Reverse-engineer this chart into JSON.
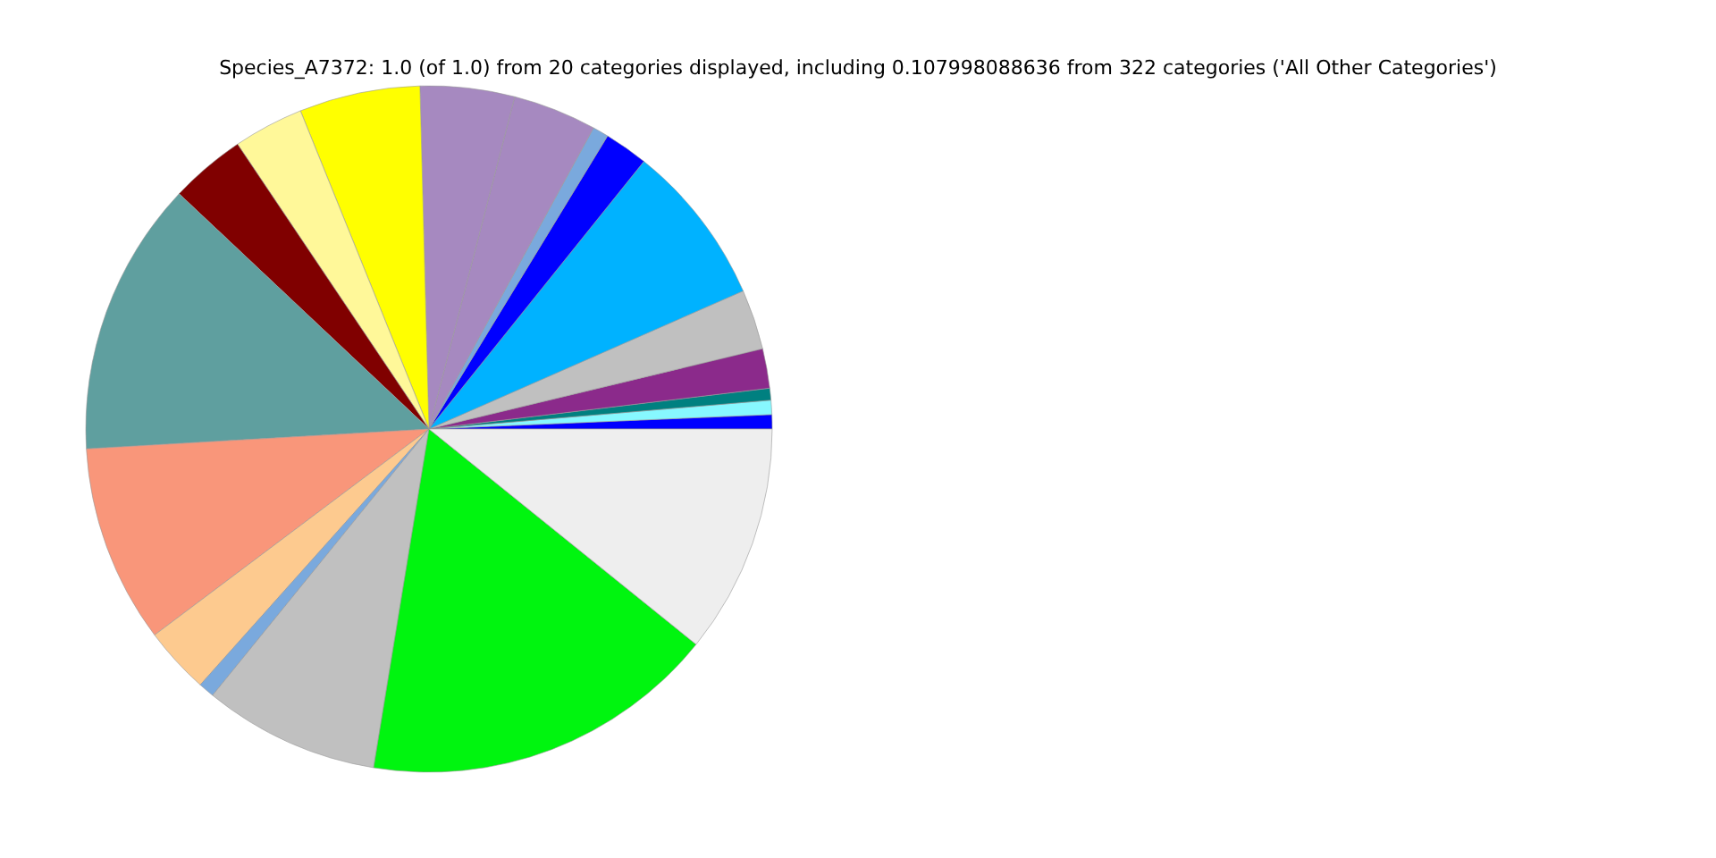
{
  "chart_data": {
    "type": "pie",
    "title": "Species_A7372: 1.0 (of 1.0) from 20 categories displayed, including 0.107998088636 from 322 categories ('All Other Categories')",
    "categories": [
      null,
      null,
      null,
      null,
      null,
      null,
      null,
      null,
      null,
      null,
      null,
      null,
      null,
      null,
      null,
      null,
      null,
      null,
      null,
      null
    ],
    "values": [
      0.67,
      0.67,
      0.56,
      1.86,
      2.83,
      7.64,
      2.06,
      0.75,
      3.94,
      4.44,
      5.69,
      3.31,
      3.56,
      12.94,
      9.33,
      3.14,
      0.75,
      8.28,
      16.78,
      10.8
    ],
    "colors": [
      "#0000ff",
      "#87f8ff",
      "#008080",
      "#8b2a8b",
      "#c0c0c0",
      "#00b2ff",
      "#0000ff",
      "#7aa9dd",
      "#a689c0",
      "#a689c0",
      "#ffff00",
      "#fff899",
      "#800000",
      "#5f9f9f",
      "#f9967a",
      "#fdca8f",
      "#7aa9dd",
      "#c0c0c0",
      "#00f50f",
      "#eeeeee"
    ],
    "legend": false
  }
}
